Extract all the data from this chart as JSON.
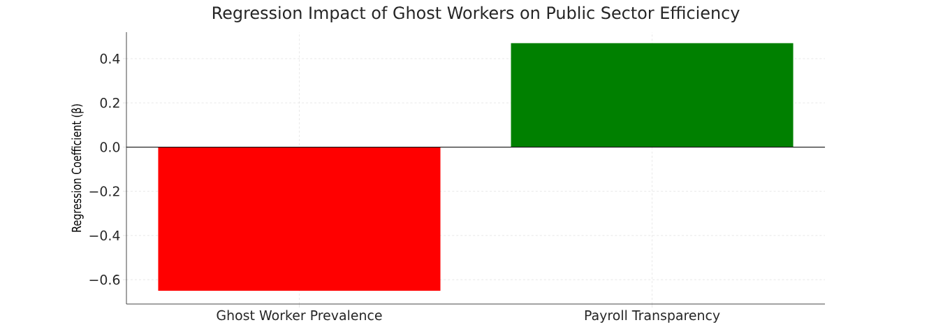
{
  "chart_data": {
    "type": "bar",
    "title": "Regression Impact of Ghost Workers on Public Sector Efficiency",
    "ylabel": "Regression Coefficient (β)",
    "categories": [
      "Ghost Worker Prevalence",
      "Payroll Transparency"
    ],
    "values": [
      -0.65,
      0.47
    ],
    "colors": [
      "#ff0000",
      "#008000"
    ],
    "ylim": [
      -0.71,
      0.52
    ],
    "yticks": [
      {
        "value": -0.6,
        "label": "−0.6"
      },
      {
        "value": -0.4,
        "label": "−0.4"
      },
      {
        "value": -0.2,
        "label": "−0.2"
      },
      {
        "value": 0,
        "label": "0.0"
      },
      0.2,
      0.4
    ],
    "ref_lines": [
      {
        "axis": "y",
        "value": 0,
        "color": "#000000"
      }
    ],
    "grid": true
  }
}
